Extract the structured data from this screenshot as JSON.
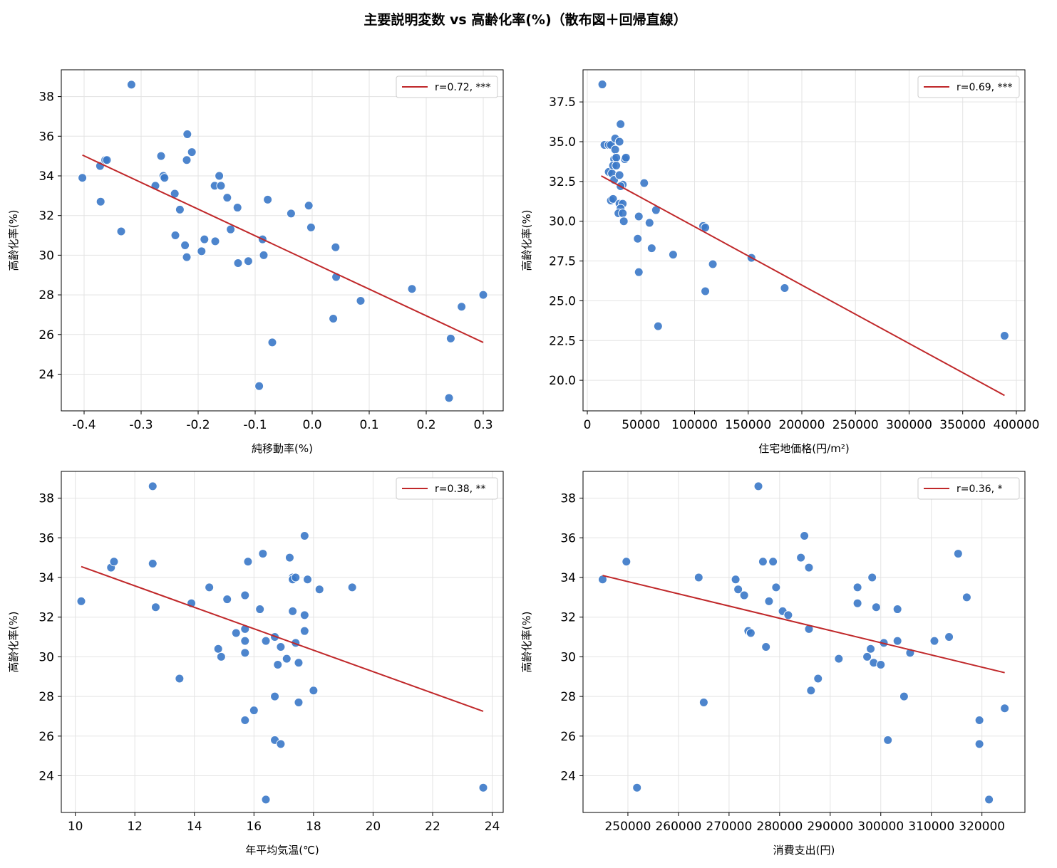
{
  "figure_title": "主要説明変数 vs 高齢化率(%)（散布図＋回帰直線）",
  "colors": {
    "point": "#3a78c8",
    "line": "#c0282a",
    "grid": "#e3e3e3",
    "axis": "#000000"
  },
  "chart_data": [
    {
      "type": "scatter",
      "xlabel": "純移動率(%)",
      "ylabel": "高齢化率(%)",
      "xlim": [
        -0.44,
        0.335
      ],
      "ylim": [
        22.15,
        39.35
      ],
      "xticks": [
        -0.4,
        -0.3,
        -0.2,
        -0.1,
        0.0,
        0.1,
        0.2,
        0.3
      ],
      "xtick_labels": [
        "-0.4",
        "-0.3",
        "-0.2",
        "-0.1",
        "0.0",
        "0.1",
        "0.2",
        "0.3"
      ],
      "yticks": [
        24,
        26,
        28,
        30,
        32,
        34,
        36,
        38
      ],
      "ytick_labels": [
        "24",
        "26",
        "28",
        "30",
        "32",
        "34",
        "36",
        "38"
      ],
      "legend": "r=0.72, ***",
      "legend_placement": "top-right",
      "grid": true,
      "regression": {
        "x": [
          -0.403,
          0.3
        ],
        "y": [
          35.05,
          25.6
        ]
      },
      "points": [
        [
          -0.403,
          33.9
        ],
        [
          -0.372,
          34.5
        ],
        [
          -0.363,
          34.8
        ],
        [
          -0.36,
          34.8
        ],
        [
          -0.371,
          32.7
        ],
        [
          -0.335,
          31.2
        ],
        [
          -0.317,
          38.6
        ],
        [
          -0.275,
          33.5
        ],
        [
          -0.265,
          35.0
        ],
        [
          -0.261,
          34.0
        ],
        [
          -0.259,
          33.9
        ],
        [
          -0.241,
          33.1
        ],
        [
          -0.24,
          31.0
        ],
        [
          -0.232,
          32.3
        ],
        [
          -0.223,
          30.5
        ],
        [
          -0.22,
          29.9
        ],
        [
          -0.22,
          34.8
        ],
        [
          -0.219,
          36.1
        ],
        [
          -0.211,
          35.2
        ],
        [
          -0.194,
          30.2
        ],
        [
          -0.189,
          30.8
        ],
        [
          -0.17,
          30.7
        ],
        [
          -0.171,
          33.5
        ],
        [
          -0.163,
          34.0
        ],
        [
          -0.16,
          33.5
        ],
        [
          -0.149,
          32.9
        ],
        [
          -0.143,
          31.3
        ],
        [
          -0.131,
          32.4
        ],
        [
          -0.13,
          29.6
        ],
        [
          -0.112,
          29.7
        ],
        [
          -0.093,
          23.4
        ],
        [
          -0.087,
          30.8
        ],
        [
          -0.085,
          30.0
        ],
        [
          -0.078,
          32.8
        ],
        [
          -0.07,
          25.6
        ],
        [
          -0.037,
          32.1
        ],
        [
          -0.006,
          32.5
        ],
        [
          -0.002,
          31.4
        ],
        [
          0.037,
          26.8
        ],
        [
          0.041,
          30.4
        ],
        [
          0.042,
          28.9
        ],
        [
          0.085,
          27.7
        ],
        [
          0.175,
          28.3
        ],
        [
          0.24,
          22.8
        ],
        [
          0.243,
          25.8
        ],
        [
          0.262,
          27.4
        ],
        [
          0.3,
          28.0
        ]
      ]
    },
    {
      "type": "scatter",
      "xlabel": "住宅地価格(円/m²)",
      "ylabel": "高齢化率(%)",
      "xlim": [
        -4000,
        408000
      ],
      "ylim": [
        18.08,
        39.52
      ],
      "xticks": [
        0,
        50000,
        100000,
        150000,
        200000,
        250000,
        300000,
        350000,
        400000
      ],
      "xtick_labels": [
        "0",
        "50000",
        "100000",
        "150000",
        "200000",
        "250000",
        "300000",
        "350000",
        "400000"
      ],
      "yticks": [
        20.0,
        22.5,
        25.0,
        27.5,
        30.0,
        32.5,
        35.0,
        37.5
      ],
      "ytick_labels": [
        "20.0",
        "22.5",
        "25.0",
        "27.5",
        "30.0",
        "32.5",
        "35.0",
        "37.5"
      ],
      "legend": "r=0.69, ***",
      "legend_placement": "top-right",
      "grid": true,
      "regression": {
        "x": [
          13000,
          389000
        ],
        "y": [
          32.85,
          19.05
        ]
      },
      "points": [
        [
          14000,
          38.6
        ],
        [
          16000,
          34.8
        ],
        [
          20000,
          34.8
        ],
        [
          22000,
          34.8
        ],
        [
          20000,
          33.1
        ],
        [
          23000,
          33.0
        ],
        [
          22000,
          31.3
        ],
        [
          24000,
          31.4
        ],
        [
          26000,
          35.2
        ],
        [
          26000,
          34.5
        ],
        [
          25000,
          33.9
        ],
        [
          27000,
          34.0
        ],
        [
          24000,
          33.5
        ],
        [
          27000,
          33.5
        ],
        [
          25000,
          32.6
        ],
        [
          30000,
          35.0
        ],
        [
          31000,
          36.1
        ],
        [
          30000,
          32.9
        ],
        [
          33000,
          32.3
        ],
        [
          31000,
          32.2
        ],
        [
          30000,
          31.1
        ],
        [
          33000,
          31.1
        ],
        [
          31000,
          30.8
        ],
        [
          29000,
          30.5
        ],
        [
          33000,
          30.5
        ],
        [
          34000,
          30.0
        ],
        [
          35000,
          33.9
        ],
        [
          36000,
          34.0
        ],
        [
          53000,
          32.4
        ],
        [
          48000,
          30.3
        ],
        [
          47000,
          28.9
        ],
        [
          48000,
          26.8
        ],
        [
          58000,
          29.9
        ],
        [
          60000,
          28.3
        ],
        [
          64000,
          30.7
        ],
        [
          66000,
          23.4
        ],
        [
          80000,
          27.9
        ],
        [
          108000,
          29.7
        ],
        [
          110000,
          29.6
        ],
        [
          110000,
          25.6
        ],
        [
          117000,
          27.3
        ],
        [
          153000,
          27.7
        ],
        [
          184000,
          25.8
        ],
        [
          389000,
          22.8
        ]
      ]
    },
    {
      "type": "scatter",
      "xlabel": "年平均気温(℃)",
      "ylabel": "高齢化率(%)",
      "xlim": [
        9.53,
        24.37
      ],
      "ylim": [
        22.15,
        39.35
      ],
      "xticks": [
        10,
        12,
        14,
        16,
        18,
        20,
        22,
        24
      ],
      "xtick_labels": [
        "10",
        "12",
        "14",
        "16",
        "18",
        "20",
        "22",
        "24"
      ],
      "yticks": [
        24,
        26,
        28,
        30,
        32,
        34,
        36,
        38
      ],
      "ytick_labels": [
        "24",
        "26",
        "28",
        "30",
        "32",
        "34",
        "36",
        "38"
      ],
      "legend": "r=0.38, **",
      "legend_placement": "top-right",
      "grid": true,
      "regression": {
        "x": [
          10.2,
          23.7
        ],
        "y": [
          34.55,
          27.25
        ]
      },
      "points": [
        [
          10.2,
          32.8
        ],
        [
          11.2,
          34.5
        ],
        [
          11.3,
          34.8
        ],
        [
          12.6,
          34.7
        ],
        [
          12.6,
          38.6
        ],
        [
          12.7,
          32.5
        ],
        [
          13.5,
          28.9
        ],
        [
          13.9,
          32.7
        ],
        [
          14.5,
          33.5
        ],
        [
          14.8,
          30.4
        ],
        [
          14.9,
          30.0
        ],
        [
          15.1,
          32.9
        ],
        [
          15.4,
          31.2
        ],
        [
          15.7,
          33.1
        ],
        [
          15.7,
          31.4
        ],
        [
          15.7,
          30.8
        ],
        [
          15.7,
          30.2
        ],
        [
          15.7,
          26.8
        ],
        [
          15.8,
          34.8
        ],
        [
          16.0,
          27.3
        ],
        [
          16.2,
          32.4
        ],
        [
          16.3,
          35.2
        ],
        [
          16.4,
          30.8
        ],
        [
          16.4,
          22.8
        ],
        [
          16.7,
          31.0
        ],
        [
          16.7,
          28.0
        ],
        [
          16.7,
          25.8
        ],
        [
          16.8,
          29.6
        ],
        [
          16.9,
          30.5
        ],
        [
          16.9,
          25.6
        ],
        [
          17.1,
          29.9
        ],
        [
          17.2,
          35.0
        ],
        [
          17.3,
          34.0
        ],
        [
          17.3,
          33.9
        ],
        [
          17.4,
          34.0
        ],
        [
          17.3,
          32.3
        ],
        [
          17.4,
          30.7
        ],
        [
          17.5,
          29.7
        ],
        [
          17.5,
          27.7
        ],
        [
          17.7,
          36.1
        ],
        [
          17.7,
          32.1
        ],
        [
          17.7,
          31.3
        ],
        [
          17.8,
          33.9
        ],
        [
          18.0,
          28.3
        ],
        [
          18.2,
          33.4
        ],
        [
          19.3,
          33.5
        ],
        [
          23.7,
          23.4
        ]
      ]
    },
    {
      "type": "scatter",
      "xlabel": "消費支出(円)",
      "ylabel": "高齢化率(%)",
      "xlim": [
        241130,
        328500
      ],
      "ylim": [
        22.15,
        39.35
      ],
      "xticks": [
        250000,
        260000,
        270000,
        280000,
        290000,
        300000,
        310000,
        320000
      ],
      "xtick_labels": [
        "250000",
        "260000",
        "270000",
        "280000",
        "290000",
        "300000",
        "310000",
        "320000"
      ],
      "yticks": [
        24,
        26,
        28,
        30,
        32,
        34,
        36,
        38
      ],
      "ytick_labels": [
        "24",
        "26",
        "28",
        "30",
        "32",
        "34",
        "36",
        "38"
      ],
      "legend": "r=0.36, *",
      "legend_placement": "top-right",
      "grid": true,
      "regression": {
        "x": [
          245000,
          324500
        ],
        "y": [
          34.1,
          29.2
        ]
      },
      "points": [
        [
          245000,
          33.9
        ],
        [
          249700,
          34.8
        ],
        [
          251800,
          23.4
        ],
        [
          264000,
          34.0
        ],
        [
          265000,
          27.7
        ],
        [
          271300,
          33.9
        ],
        [
          271800,
          33.4
        ],
        [
          273000,
          33.1
        ],
        [
          273800,
          31.3
        ],
        [
          274300,
          31.2
        ],
        [
          276700,
          34.8
        ],
        [
          277300,
          30.5
        ],
        [
          277900,
          32.8
        ],
        [
          278700,
          34.8
        ],
        [
          279300,
          33.5
        ],
        [
          280600,
          32.3
        ],
        [
          281700,
          32.1
        ],
        [
          284200,
          35.0
        ],
        [
          284900,
          36.1
        ],
        [
          285800,
          31.4
        ],
        [
          285800,
          34.5
        ],
        [
          286200,
          28.3
        ],
        [
          287600,
          28.9
        ],
        [
          291700,
          29.9
        ],
        [
          295400,
          33.5
        ],
        [
          295400,
          32.7
        ],
        [
          297300,
          30.0
        ],
        [
          298000,
          30.4
        ],
        [
          298300,
          34.0
        ],
        [
          298600,
          29.7
        ],
        [
          299100,
          32.5
        ],
        [
          300000,
          29.6
        ],
        [
          300600,
          30.7
        ],
        [
          301400,
          25.8
        ],
        [
          303300,
          32.4
        ],
        [
          303300,
          30.8
        ],
        [
          304600,
          28.0
        ],
        [
          305800,
          30.2
        ],
        [
          310600,
          30.8
        ],
        [
          313500,
          31.0
        ],
        [
          315300,
          35.2
        ],
        [
          317000,
          33.0
        ],
        [
          319500,
          26.8
        ],
        [
          319500,
          25.6
        ],
        [
          321400,
          22.8
        ],
        [
          324500,
          27.4
        ],
        [
          275800,
          38.6
        ]
      ]
    }
  ]
}
